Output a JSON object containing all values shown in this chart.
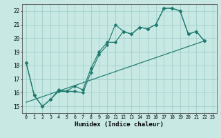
{
  "xlabel": "Humidex (Indice chaleur)",
  "bg_color": "#c8e8e4",
  "grid_color": "#a0ceca",
  "line_color": "#1a7a6e",
  "xlim": [
    -0.5,
    23.5
  ],
  "ylim": [
    14.5,
    22.5
  ],
  "xtick_labels": [
    "0",
    "1",
    "2",
    "3",
    "4",
    "5",
    "6",
    "7",
    "8",
    "9",
    "10",
    "11",
    "12",
    "13",
    "14",
    "15",
    "16",
    "17",
    "18",
    "19",
    "20",
    "21",
    "22",
    "23"
  ],
  "ytick_values": [
    15,
    16,
    17,
    18,
    19,
    20,
    21,
    22
  ],
  "curve1_x": [
    0,
    1,
    2,
    3,
    4,
    5,
    6,
    7,
    8,
    9,
    10,
    11,
    12,
    13,
    14,
    15,
    16,
    17,
    18,
    19,
    20,
    21,
    22
  ],
  "curve1_y": [
    18.2,
    15.8,
    15.0,
    15.5,
    16.1,
    16.1,
    16.1,
    16.0,
    17.5,
    18.8,
    19.5,
    21.0,
    20.5,
    20.3,
    20.8,
    20.7,
    21.0,
    22.2,
    22.2,
    22.0,
    20.3,
    20.5,
    19.8
  ],
  "curve2_x": [
    0,
    1,
    2,
    3,
    4,
    5,
    6,
    7,
    8,
    9,
    10,
    11,
    12,
    13,
    14,
    15,
    16,
    17,
    18,
    19,
    20,
    21,
    22
  ],
  "curve2_y": [
    18.2,
    15.8,
    15.0,
    15.5,
    16.2,
    16.1,
    16.5,
    16.2,
    17.8,
    19.0,
    19.7,
    19.7,
    20.5,
    20.3,
    20.8,
    20.7,
    21.0,
    22.2,
    22.2,
    22.0,
    20.3,
    20.5,
    19.8
  ],
  "trend_x": [
    0,
    22
  ],
  "trend_y": [
    15.3,
    19.8
  ]
}
